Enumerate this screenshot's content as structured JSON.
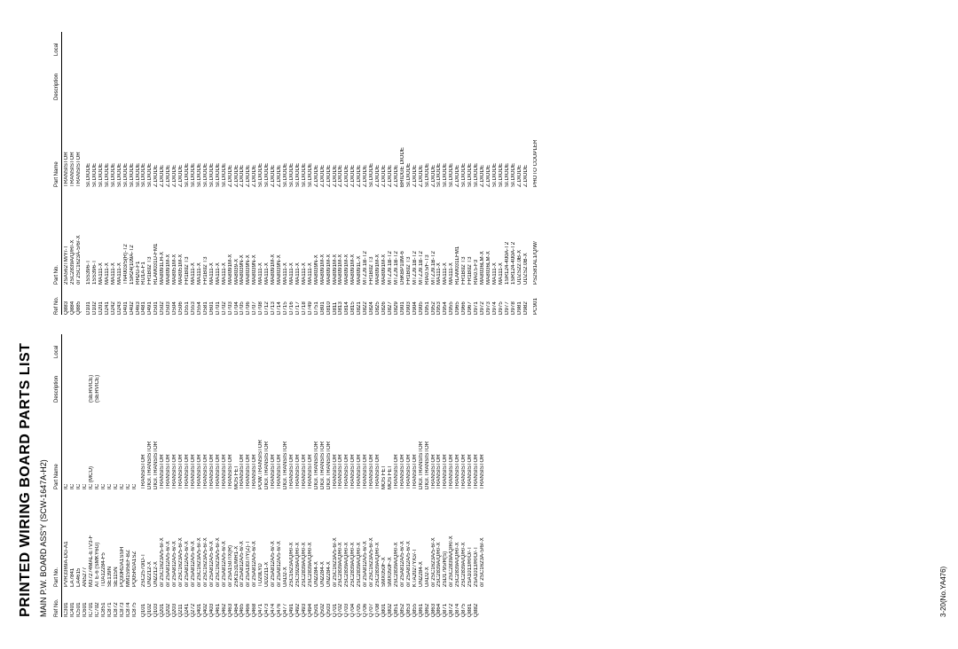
{
  "page_title": "PRINTED WIRING BOARD PARTS LIST",
  "subtitle": "MAIN P.W. BOARD ASS'Y (SCW-1647A-H2)",
  "footer": "3-20(No.YA476)",
  "headers": {
    "ref": "Ref No.",
    "part": "Part No.",
    "name": "Part Name",
    "desc": "Description",
    "loc": "Local"
  },
  "col1": [
    {
      "ref": "IC301",
      "part": "PVR3369A-DG-A1",
      "name": "IC",
      "desc": ""
    },
    {
      "ref": "IC401",
      "part": "LA7841",
      "name": "IC",
      "desc": ""
    },
    {
      "ref": "IC501",
      "part": "LA4615",
      "name": "IC",
      "desc": ""
    },
    {
      "ref": "IC601",
      "part": "AN5277",
      "name": "IC",
      "desc": ""
    },
    {
      "ref": "IC701",
      "part": "M37274MAL-ETV3-F",
      "name": "IC (MCU)",
      "desc": "(SERVICE)"
    },
    {
      "ref": "IC702",
      "part": "AT E-6 (SMKY6G)",
      "name": "IC",
      "desc": "(SERVICE)"
    },
    {
      "ref": "IC851",
      "part": "TDA12284-F5",
      "name": "IC",
      "desc": ""
    },
    {
      "ref": "IC871",
      "part": "SE139N",
      "name": "IC",
      "desc": ""
    },
    {
      "ref": "IC872",
      "part": "SE115N",
      "name": "IC",
      "desc": ""
    },
    {
      "ref": "IC873",
      "part": "PQ30RDA1SSH",
      "name": "IC",
      "desc": ""
    },
    {
      "ref": "IC874",
      "part": "MM1595EF-BZ",
      "name": "IC",
      "desc": ""
    },
    {
      "ref": "IC875",
      "part": "PQ05RDA1SZ",
      "name": "IC",
      "desc": ""
    },
    {
      "spacer": true
    },
    {
      "ref": "Q101",
      "part": "2SC2570/D-T",
      "name": "TRANSISTOR",
      "desc": ""
    },
    {
      "ref": "Q102",
      "part": "UN2212-X",
      "name": "DIGI.TRANSISTOR",
      "desc": ""
    },
    {
      "ref": "Q103",
      "part": "UN2212-X",
      "name": "DIGI.TRANSISTOR",
      "desc": ""
    },
    {
      "ref": "Q201",
      "part": "or 2SC1623A/5-6/-X",
      "name": "TRANSISTOR",
      "desc": ""
    },
    {
      "ref": "Q202",
      "part": "or 2SA812A/5-6/-X",
      "name": "TRANSISTOR",
      "desc": ""
    },
    {
      "ref": "Q203",
      "part": "or 2SA812A/5-6/-X",
      "name": "TRANSISTOR",
      "desc": ""
    },
    {
      "ref": "Q211",
      "part": "or 2SC1623A/5-6/-X",
      "name": "TRANSISTOR",
      "desc": ""
    },
    {
      "ref": "Q241",
      "part": "or 2SA812A/5-6/-X",
      "name": "TRANSISTOR",
      "desc": ""
    },
    {
      "ref": "Q272",
      "part": "or 2SA812A/5-6/-X",
      "name": "TRANSISTOR",
      "desc": ""
    },
    {
      "ref": "Q401",
      "part": "or 2SC1623A/5-6/-X",
      "name": "TRANSISTOR",
      "desc": ""
    },
    {
      "ref": "Q402",
      "part": "or 2SC1623A/5-6/-X",
      "name": "TRANSISTOR",
      "desc": ""
    },
    {
      "ref": "Q403",
      "part": "or 2SA812A/5-6/-X",
      "name": "TRANSISTOR",
      "desc": ""
    },
    {
      "ref": "Q461",
      "part": "or 2SC1623A/5-6/-X",
      "name": "TRANSISTOR",
      "desc": ""
    },
    {
      "ref": "Q462",
      "part": "or 2SA812A/5-6/-X",
      "name": "TRANSISTOR",
      "desc": ""
    },
    {
      "ref": "Q463",
      "part": "or 2SA1507/X(R)",
      "name": "TRANSISTOR",
      "desc": ""
    },
    {
      "ref": "Q464",
      "part": "2SK1531/MR1-X",
      "name": "MOS FET",
      "desc": ""
    },
    {
      "ref": "Q465",
      "part": "or 2SA812A/5-6/-X",
      "name": "TRANSISTOR",
      "desc": ""
    },
    {
      "ref": "Q466",
      "part": "or 2SA1837/Y(Z)-T",
      "name": "TRANSISTOR",
      "desc": ""
    },
    {
      "ref": "Q468",
      "part": "or 2SA812A/5-6/-X",
      "name": "TRANSISTOR",
      "desc": ""
    },
    {
      "ref": "Q471",
      "part": "TU20LYD",
      "name": "POW.TRANSISTOR",
      "desc": ""
    },
    {
      "ref": "Q473",
      "part": "UD2211-X",
      "name": "DIGI.TRANSISTOR",
      "desc": ""
    },
    {
      "ref": "Q474",
      "part": "or 2SA812A/5-6/-X",
      "name": "TRANSISTOR",
      "desc": ""
    },
    {
      "ref": "Q476",
      "part": "or 2SA812A/5-6/-X",
      "name": "TRANSISTOR",
      "desc": ""
    },
    {
      "ref": "Q477",
      "part": "UAD2-X",
      "name": "DIGI.TRANSISTOR",
      "desc": ""
    },
    {
      "ref": "Q491",
      "part": "2SC1623A/Q/R/-X",
      "name": "TRANSISTOR",
      "desc": ""
    },
    {
      "ref": "Q492",
      "part": "2SC3928A/Q/R/-X",
      "name": "TRANSISTOR",
      "desc": ""
    },
    {
      "ref": "Q493",
      "part": "2SC2839A/Q/R/-X",
      "name": "TRANSISTOR",
      "desc": ""
    },
    {
      "ref": "Q494",
      "part": "2SC2839A/Q/R/-X",
      "name": "TRANSISTOR",
      "desc": ""
    },
    {
      "ref": "Q501",
      "part": "UN2284-X",
      "name": "DIGI.TRANSISTOR",
      "desc": ""
    },
    {
      "ref": "Q502",
      "part": "UN2284-X",
      "name": "DIGI.TRANSISTOR",
      "desc": ""
    },
    {
      "ref": "Q503",
      "part": "UN2284-X",
      "name": "DIGI.TRANSISTOR",
      "desc": ""
    },
    {
      "ref": "Q701",
      "part": "or 2SC1623A/5-6/-X",
      "name": "TRANSISTOR",
      "desc": ""
    },
    {
      "ref": "Q702",
      "part": "2SC2839A/Q/R/-X",
      "name": "TRANSISTOR",
      "desc": ""
    },
    {
      "ref": "Q703",
      "part": "2SC2839A/Q/R/-X",
      "name": "TRANSISTOR",
      "desc": ""
    },
    {
      "ref": "Q704",
      "part": "2SC2839A/Q/R/-X",
      "name": "TRANSISTOR",
      "desc": ""
    },
    {
      "ref": "Q705",
      "part": "2SC2839A/Q/R/-X",
      "name": "TRANSISTOR",
      "desc": ""
    },
    {
      "ref": "Q706",
      "part": "or 2SA812A/5-6/-X",
      "name": "TRANSISTOR",
      "desc": ""
    },
    {
      "ref": "Q707",
      "part": "or 2SC1623A/5-6/-X",
      "name": "TRANSISTOR",
      "desc": ""
    },
    {
      "ref": "Q708",
      "part": "2SC2839A/Q/R/-X",
      "name": "TRANSISTOR",
      "desc": ""
    },
    {
      "ref": "Q801",
      "part": "SMX050F-X",
      "name": "MOS FET",
      "desc": ""
    },
    {
      "ref": "Q802",
      "part": "SMX050F-X",
      "name": "MOS FET",
      "desc": ""
    },
    {
      "ref": "Q851",
      "part": "2SC2839A/Q/R/-X",
      "name": "TRANSISTOR",
      "desc": ""
    },
    {
      "ref": "Q852",
      "part": "or 2SA812A/5-6/-X",
      "name": "TRANSISTOR",
      "desc": ""
    },
    {
      "ref": "Q853",
      "part": "or 2SA812A/5-6/-X",
      "name": "TRANSISTOR",
      "desc": ""
    },
    {
      "ref": "Q855",
      "part": "KTA2027Y/G/-T",
      "name": "TRANSISTOR",
      "desc": ""
    },
    {
      "ref": "Q861",
      "part": "UN2284-X",
      "name": "DIGI.TRANSISTOR",
      "desc": ""
    },
    {
      "ref": "Q862",
      "part": "UAD2-X",
      "name": "DIGI.TRANSISTOR",
      "desc": ""
    },
    {
      "ref": "Q863",
      "part": "or 2SC1623A/5-6/-X",
      "name": "TRANSISTOR",
      "desc": ""
    },
    {
      "ref": "Q864",
      "part": "2SC2839A/Q/R/-X",
      "name": "TRANSISTOR",
      "desc": ""
    },
    {
      "ref": "Q871",
      "part": "2SD1795/R(S)",
      "name": "TRANSISTOR",
      "desc": ""
    },
    {
      "ref": "Q872",
      "part": "or 2SC2839A/Q/R/-X",
      "name": "TRANSISTOR",
      "desc": ""
    },
    {
      "ref": "Q874",
      "part": "2SC2839A/Q/R/-X",
      "name": "TRANSISTOR",
      "desc": ""
    },
    {
      "ref": "Q875",
      "part": "2SC2839A/Q/R/-X",
      "name": "TRANSISTOR",
      "desc": ""
    },
    {
      "ref": "Q881",
      "part": "2SA1013/R/O/-T",
      "name": "TRANSISTOR",
      "desc": ""
    },
    {
      "ref": "Q882",
      "part": "2SA1013/R/O/-T",
      "name": "TRANSISTOR",
      "desc": ""
    },
    {
      "ref": "",
      "part": "or 2SC1623A-5/6/-X",
      "name": "TRANSISTOR",
      "desc": ""
    }
  ],
  "col2": [
    {
      "ref": "Q883",
      "part": "2SA562TM/Y/-T",
      "name": "TRANSISTOR",
      "desc": ""
    },
    {
      "ref": "Q884",
      "part": "2SC2839A/Q/R/-X",
      "name": "TRANSISTOR",
      "desc": ""
    },
    {
      "ref": "Q885",
      "part": "or 2SC1623A-5/6/-X",
      "name": "TRANSISTOR",
      "desc": ""
    },
    {
      "spacer": true
    },
    {
      "ref": "D101",
      "part": "1SS396-T",
      "name": "SI.DIODE",
      "desc": ""
    },
    {
      "ref": "D102",
      "part": "1SS396-T",
      "name": "SI.DIODE",
      "desc": ""
    },
    {
      "ref": "D201",
      "part": "MA111-X",
      "name": "SI.DIODE",
      "desc": ""
    },
    {
      "ref": "D241",
      "part": "MA111-X",
      "name": "SI.DIODE",
      "desc": ""
    },
    {
      "ref": "D242",
      "part": "MA111-X",
      "name": "SI.DIODE",
      "desc": ""
    },
    {
      "ref": "D243",
      "part": "MA111-X",
      "name": "SI.DIODE",
      "desc": ""
    },
    {
      "ref": "D401",
      "part": "TN4003/S(R)-T2",
      "name": "SI.DIODE",
      "desc": ""
    },
    {
      "ref": "D402",
      "part": "1SR24(109A-T2",
      "name": "SI.DIODE",
      "desc": ""
    },
    {
      "ref": "D463",
      "part": "RH2G-F1",
      "name": "SI.DIODE",
      "desc": ""
    },
    {
      "ref": "D481",
      "part": "RÜ1A-F1",
      "name": "SI.DIODE",
      "desc": ""
    },
    {
      "ref": "D491",
      "part": "FR1B02 T3",
      "name": "SI.DIODE",
      "desc": ""
    },
    {
      "ref": "D501",
      "part": "RLAM031U-FM1",
      "name": "Z.DIODE",
      "desc": ""
    },
    {
      "ref": "D502",
      "part": "MA8091LH-X",
      "name": "Z.DIODE",
      "desc": ""
    },
    {
      "ref": "D503",
      "part": "MA8091M-X",
      "name": "Z.DIODE",
      "desc": ""
    },
    {
      "ref": "D504",
      "part": "MA8051M-X",
      "name": "Z.DIODE",
      "desc": ""
    },
    {
      "ref": "D506",
      "part": "MA8051M-X",
      "name": "Z.DIODE",
      "desc": ""
    },
    {
      "ref": "D551",
      "part": "FR1B02 T3",
      "name": "SI.DIODE",
      "desc": ""
    },
    {
      "ref": "D553",
      "part": "MA111-X",
      "name": "SI.DIODE",
      "desc": ""
    },
    {
      "ref": "D554",
      "part": "MA111-X",
      "name": "SI.DIODE",
      "desc": ""
    },
    {
      "ref": "D581",
      "part": "FR1B02 T3",
      "name": "SI.DIODE",
      "desc": ""
    },
    {
      "ref": "D601",
      "part": "MA111-X",
      "name": "SI.DIODE",
      "desc": ""
    },
    {
      "ref": "D701",
      "part": "MA111-X",
      "name": "SI.DIODE",
      "desc": ""
    },
    {
      "ref": "D702",
      "part": "MA111-X",
      "name": "SI.DIODE",
      "desc": ""
    },
    {
      "ref": "D703",
      "part": "MA8091M-X",
      "name": "Z.DIODE",
      "desc": ""
    },
    {
      "ref": "D704",
      "part": "MA8039-X",
      "name": "Z.DIODE",
      "desc": ""
    },
    {
      "ref": "D705",
      "part": "MA8039N-X",
      "name": "Z.DIODE",
      "desc": ""
    },
    {
      "ref": "D706",
      "part": "MA8039N-X",
      "name": "Z.DIODE",
      "desc": ""
    },
    {
      "ref": "D707",
      "part": "MA8039N-X",
      "name": "Z.DIODE",
      "desc": ""
    },
    {
      "ref": "D708",
      "part": "MA111-X",
      "name": "SI.DIODE",
      "desc": ""
    },
    {
      "ref": "D712",
      "part": "MA111-X",
      "name": "SI.DIODE",
      "desc": ""
    },
    {
      "ref": "D713",
      "part": "MA8091M-X",
      "name": "Z.DIODE",
      "desc": ""
    },
    {
      "ref": "D714",
      "part": "MA8039N-X",
      "name": "Z.DIODE",
      "desc": ""
    },
    {
      "ref": "D715",
      "part": "MA111-X",
      "name": "SI.DIODE",
      "desc": ""
    },
    {
      "ref": "D716",
      "part": "MA111-X",
      "name": "SI.DIODE",
      "desc": ""
    },
    {
      "ref": "D717",
      "part": "MA111-X",
      "name": "SI.DIODE",
      "desc": ""
    },
    {
      "ref": "D718",
      "part": "MA111-X",
      "name": "SI.DIODE",
      "desc": ""
    },
    {
      "ref": "D749",
      "part": "MA111-X",
      "name": "SI.DIODE",
      "desc": ""
    },
    {
      "ref": "D751",
      "part": "MA8039N-X",
      "name": "Z.DIODE",
      "desc": ""
    },
    {
      "ref": "D801",
      "part": "MA8091M-X",
      "name": "Z.DIODE",
      "desc": ""
    },
    {
      "ref": "D810",
      "part": "MA8091M-X",
      "name": "Z.DIODE",
      "desc": ""
    },
    {
      "ref": "D811",
      "part": "MA8091M-X",
      "name": "Z.DIODE",
      "desc": ""
    },
    {
      "ref": "D813",
      "part": "MA8091M-X",
      "name": "Z.DIODE",
      "desc": ""
    },
    {
      "ref": "D814",
      "part": "MA8091M-X",
      "name": "Z.DIODE",
      "desc": ""
    },
    {
      "ref": "D815",
      "part": "MA8091M-X",
      "name": "Z.DIODE",
      "desc": ""
    },
    {
      "ref": "D821",
      "part": "MA8091L-X",
      "name": "Z.DIODE",
      "desc": ""
    },
    {
      "ref": "D822",
      "part": "MTZJ9.1B-T2",
      "name": "Z.DIODE",
      "desc": ""
    },
    {
      "ref": "D824",
      "part": "FR1B02 T3",
      "name": "SI.DIODE",
      "desc": ""
    },
    {
      "ref": "D825",
      "part": "MA8091M-X",
      "name": "Z.DIODE",
      "desc": ""
    },
    {
      "ref": "D826",
      "part": "MA8091M-X",
      "name": "Z.DIODE",
      "desc": ""
    },
    {
      "ref": "D827",
      "part": "MTZJ9.1B-T2",
      "name": "Z.DIODE",
      "desc": ""
    },
    {
      "ref": "D829",
      "part": "MTZJ9.1B-T2",
      "name": "Z.DIODE",
      "desc": ""
    },
    {
      "ref": "D901",
      "part": "D6KBP10M-6",
      "name": "BRIDGE DIODE",
      "desc": ""
    },
    {
      "ref": "D903",
      "part": "FR1B02 T3",
      "name": "SI.DIODE",
      "desc": ""
    },
    {
      "ref": "D904",
      "part": "MTZJ9.1B-T2",
      "name": "Z.DIODE",
      "desc": ""
    },
    {
      "ref": "D905",
      "part": "MTZJ9.1B-T2",
      "name": "Z.DIODE",
      "desc": ""
    },
    {
      "ref": "D951",
      "part": "RIA0.5/F-T3",
      "name": "SI.DIODE",
      "desc": ""
    },
    {
      "ref": "D952",
      "part": "MTZJ9.1B-T2",
      "name": "Z.DIODE",
      "desc": ""
    },
    {
      "ref": "D953",
      "part": "MA111-X",
      "name": "SI.DIODE",
      "desc": ""
    },
    {
      "ref": "D954",
      "part": "MA111-X",
      "name": "SI.DIODE",
      "desc": ""
    },
    {
      "ref": "D955",
      "part": "MA111-X",
      "name": "SI.DIODE",
      "desc": ""
    },
    {
      "ref": "D965",
      "part": "RLAM031LFM1",
      "name": "Z.DIODE",
      "desc": ""
    },
    {
      "ref": "D966",
      "part": "FR1B02 T3",
      "name": "SI.DIODE",
      "desc": ""
    },
    {
      "ref": "D967",
      "part": "FR1B02 T3",
      "name": "SI.DIODE",
      "desc": ""
    },
    {
      "ref": "D971",
      "part": "RIA0.5-F3",
      "name": "SI.DIODE",
      "desc": ""
    },
    {
      "ref": "D972",
      "part": "MA8036LM-X",
      "name": "Z.DIODE",
      "desc": ""
    },
    {
      "ref": "D973",
      "part": "MA8036LM-X",
      "name": "Z.DIODE",
      "desc": ""
    },
    {
      "ref": "D974",
      "part": "MA111-X",
      "name": "SI.DIODE",
      "desc": ""
    },
    {
      "ref": "D975",
      "part": "MA111-X",
      "name": "SI.DIODE",
      "desc": ""
    },
    {
      "ref": "D977",
      "part": "1SR124-400A-T2",
      "name": "SI.DIODE",
      "desc": ""
    },
    {
      "ref": "D978",
      "part": "1SR124-400A-T2",
      "name": "SI.DIODE",
      "desc": ""
    },
    {
      "ref": "D981",
      "part": "UDZS22.0B-X",
      "name": "Z.DIODE",
      "desc": ""
    },
    {
      "ref": "D982",
      "part": "UDZS2.0B-X",
      "name": "Z.DIODE",
      "desc": ""
    },
    {
      "spacer": true
    },
    {
      "ref": "PC901",
      "part": "PS2581AL1/Q/W/",
      "name": "PHOTO COUPLER",
      "desc": ""
    }
  ]
}
